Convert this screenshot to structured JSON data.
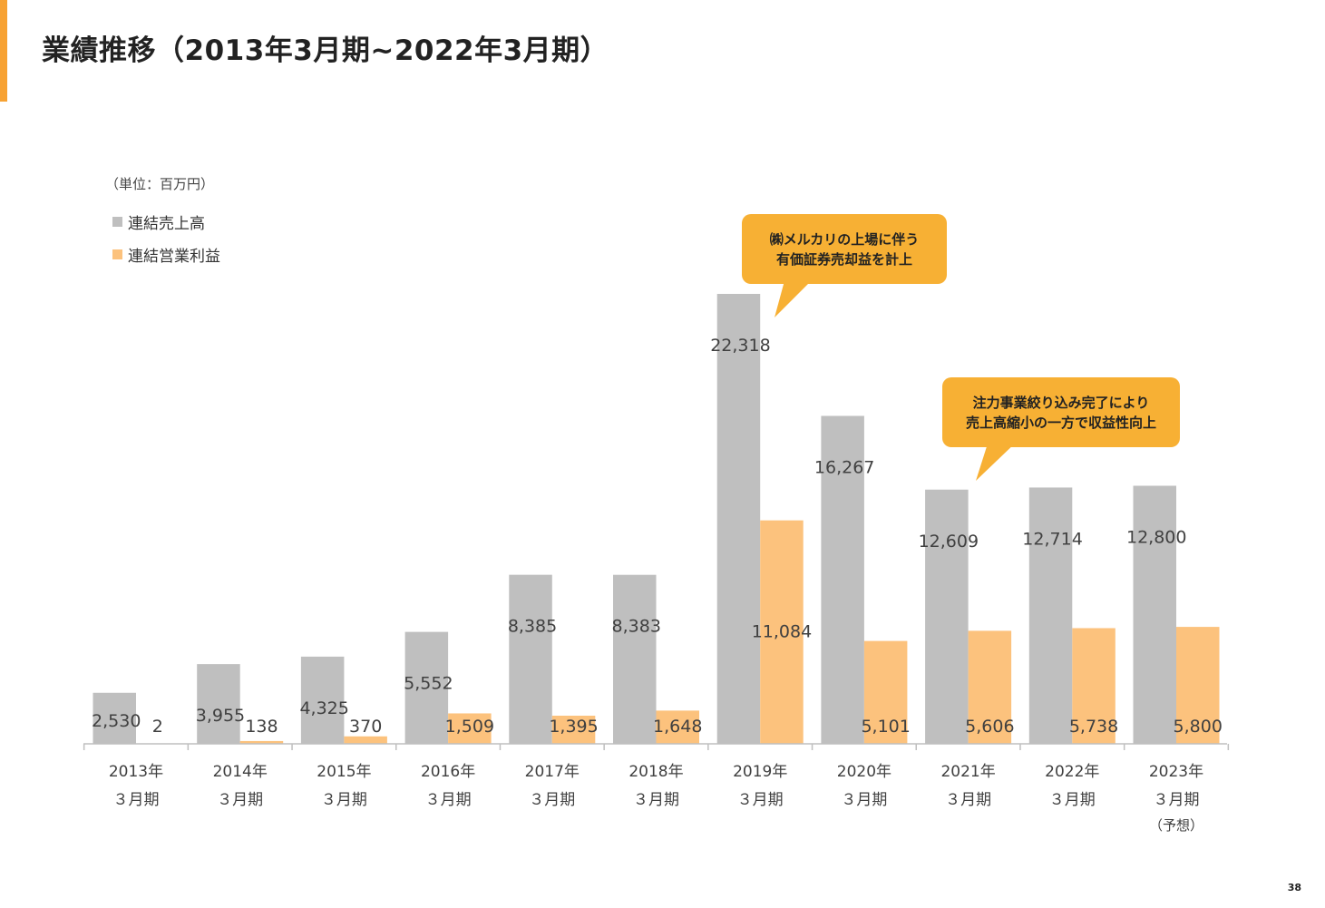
{
  "title": "業績推移（2013年3月期~2022年3月期）",
  "unit_label": "（単位：百万円）",
  "page_number": "38",
  "colors": {
    "accent": "#f7a233",
    "revenue": "#bfbfbf",
    "operating_profit": "#fcc27d",
    "callout": "#f7b034"
  },
  "callouts": [
    {
      "lines": [
        "㈱メルカリの上場に伴う",
        "有価証券売却益を計上"
      ]
    },
    {
      "lines": [
        "注力事業絞り込み完了により",
        "売上高縮小の一方で収益性向上"
      ]
    }
  ],
  "chart_data": {
    "type": "bar",
    "unit": "百万円",
    "categories": [
      [
        "2013年",
        "３月期"
      ],
      [
        "2014年",
        "３月期"
      ],
      [
        "2015年",
        "３月期"
      ],
      [
        "2016年",
        "３月期"
      ],
      [
        "2017年",
        "３月期"
      ],
      [
        "2018年",
        "３月期"
      ],
      [
        "2019年",
        "３月期"
      ],
      [
        "2020年",
        "３月期"
      ],
      [
        "2021年",
        "３月期"
      ],
      [
        "2022年",
        "３月期"
      ],
      [
        "2023年",
        "３月期",
        "（予想）"
      ]
    ],
    "series": [
      {
        "name": "連結売上高",
        "color": "#bfbfbf",
        "values": [
          2530,
          3955,
          4325,
          5552,
          8385,
          8383,
          22318,
          16267,
          12609,
          12714,
          12800
        ],
        "labels": [
          "2,530",
          "3,955",
          "4,325",
          "5,552",
          "8,385",
          "8,383",
          "22,318",
          "16,267",
          "12,609",
          "12,714",
          "12,800"
        ]
      },
      {
        "name": "連結営業利益",
        "color": "#fcc27d",
        "values": [
          2,
          138,
          370,
          1509,
          1395,
          1648,
          11084,
          5101,
          5606,
          5738,
          5800
        ],
        "labels": [
          "2",
          "138",
          "370",
          "1,509",
          "1,395",
          "1,648",
          "11,084",
          "5,101",
          "5,606",
          "5,738",
          "5,800"
        ]
      }
    ],
    "ylim": [
      0,
      22318
    ],
    "grid": false,
    "legend_position": "top-left"
  }
}
